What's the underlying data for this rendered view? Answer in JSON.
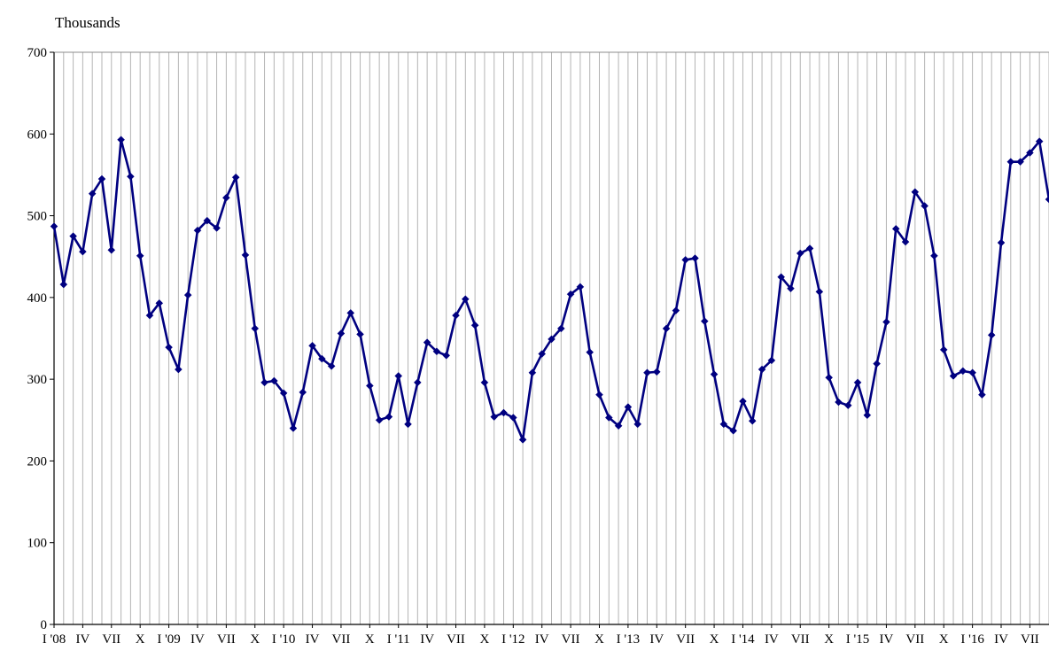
{
  "chart_data": {
    "type": "line",
    "ylabel": "Thousands",
    "xlabel": "",
    "title": "",
    "ylim": [
      0,
      700
    ],
    "yticks": [
      0,
      100,
      200,
      300,
      400,
      500,
      600,
      700
    ],
    "grid": "vertical",
    "legend": "none",
    "x_tick_labels": [
      "I '08",
      "IV",
      "VII",
      "X",
      "I '09",
      "IV",
      "VII",
      "X",
      "I '10",
      "IV",
      "VII",
      "X",
      "I '11",
      "IV",
      "VII",
      "X",
      "I '12",
      "IV",
      "VII",
      "X",
      "I '13",
      "IV",
      "VII",
      "X",
      "I '14",
      "IV",
      "VII",
      "X",
      "I '15",
      "IV",
      "VII",
      "X",
      "I '16",
      "IV",
      "VII"
    ],
    "series": [
      {
        "color": "#000080",
        "values": [
          487,
          416,
          475,
          456,
          527,
          545,
          458,
          593,
          548,
          451,
          378,
          393,
          339,
          312,
          403,
          482,
          494,
          485,
          522,
          547,
          452,
          362,
          296,
          298,
          283,
          240,
          284,
          341,
          325,
          316,
          356,
          381,
          355,
          292,
          250,
          254,
          304,
          245,
          296,
          345,
          334,
          329,
          378,
          398,
          366,
          296,
          254,
          259,
          253,
          226,
          308,
          331,
          349,
          362,
          404,
          413,
          333,
          281,
          253,
          243,
          266,
          245,
          308,
          309,
          362,
          384,
          446,
          448,
          371,
          306,
          245,
          237,
          273,
          249,
          312,
          323,
          425,
          411,
          454,
          460,
          407,
          302,
          272,
          268,
          296,
          256,
          319,
          370,
          484,
          468,
          529,
          512,
          451,
          336,
          304,
          310,
          308,
          281,
          354,
          467,
          566,
          566,
          577,
          591,
          520
        ]
      }
    ]
  }
}
